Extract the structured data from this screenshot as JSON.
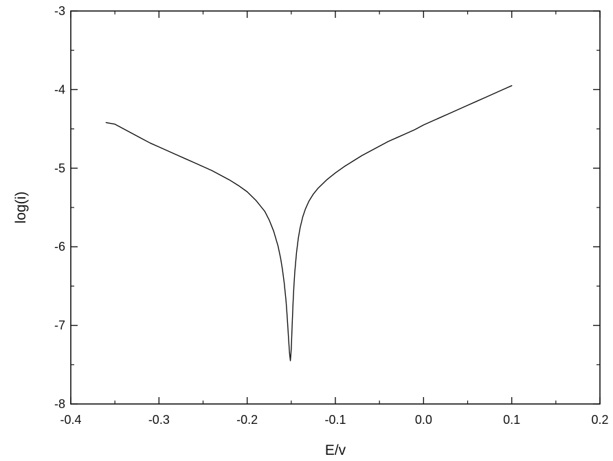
{
  "chart_data": {
    "type": "line",
    "title": "",
    "xlabel": "E/v",
    "ylabel": "log(i)",
    "xlim": [
      -0.4,
      0.2
    ],
    "ylim": [
      -8,
      -3
    ],
    "x_major_ticks": [
      -0.4,
      -0.3,
      -0.2,
      -0.1,
      0.0,
      0.1,
      0.2
    ],
    "x_tick_labels": [
      "-0.4",
      "-0.3",
      "-0.2",
      "-0.1",
      "0.0",
      "0.1",
      "0.2"
    ],
    "x_minor_step": 0.05,
    "y_major_ticks": [
      -8,
      -7,
      -6,
      -5,
      -4,
      -3
    ],
    "y_tick_labels": [
      "-8",
      "-7",
      "-6",
      "-5",
      "-4",
      "-3"
    ],
    "y_minor_step": 0.5,
    "grid": false,
    "legend": "none",
    "line_color": "#111111",
    "series": [
      {
        "x": [
          -0.36,
          -0.35,
          -0.34,
          -0.33,
          -0.32,
          -0.31,
          -0.3,
          -0.29,
          -0.28,
          -0.27,
          -0.26,
          -0.25,
          -0.24,
          -0.23,
          -0.22,
          -0.21,
          -0.2,
          -0.19,
          -0.18,
          -0.175,
          -0.17,
          -0.165,
          -0.162,
          -0.16,
          -0.158,
          -0.156,
          -0.155,
          -0.154,
          -0.153,
          -0.152,
          -0.151,
          -0.15,
          -0.149,
          -0.148,
          -0.147,
          -0.146,
          -0.144,
          -0.142,
          -0.14,
          -0.137,
          -0.134,
          -0.13,
          -0.125,
          -0.12,
          -0.11,
          -0.1,
          -0.09,
          -0.08,
          -0.07,
          -0.06,
          -0.05,
          -0.04,
          -0.03,
          -0.02,
          -0.01,
          0.0,
          0.01,
          0.02,
          0.03,
          0.04,
          0.05,
          0.06,
          0.07,
          0.08,
          0.09,
          0.1
        ],
        "y": [
          -4.42,
          -4.44,
          -4.5,
          -4.56,
          -4.62,
          -4.68,
          -4.73,
          -4.78,
          -4.83,
          -4.88,
          -4.93,
          -4.98,
          -5.03,
          -5.09,
          -5.15,
          -5.22,
          -5.3,
          -5.41,
          -5.55,
          -5.66,
          -5.8,
          -5.99,
          -6.15,
          -6.29,
          -6.46,
          -6.68,
          -6.83,
          -7.0,
          -7.18,
          -7.35,
          -7.45,
          -7.3,
          -7.0,
          -6.72,
          -6.5,
          -6.32,
          -6.07,
          -5.89,
          -5.76,
          -5.62,
          -5.52,
          -5.42,
          -5.33,
          -5.26,
          -5.15,
          -5.06,
          -4.98,
          -4.91,
          -4.84,
          -4.78,
          -4.72,
          -4.66,
          -4.61,
          -4.56,
          -4.51,
          -4.45,
          -4.4,
          -4.35,
          -4.3,
          -4.25,
          -4.2,
          -4.15,
          -4.1,
          -4.05,
          -4.0,
          -3.95
        ]
      }
    ]
  }
}
